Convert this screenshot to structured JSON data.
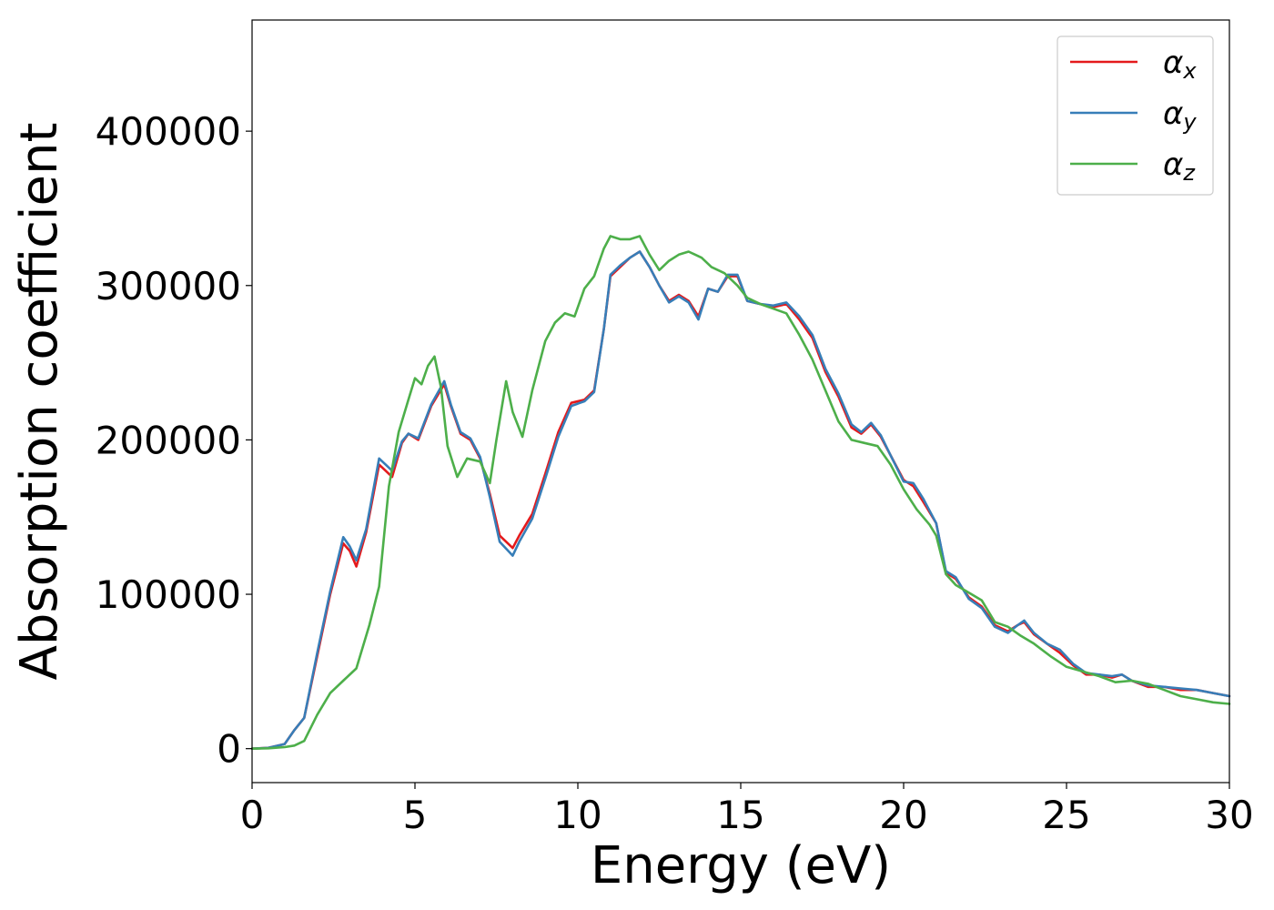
{
  "chart_data": {
    "type": "line",
    "title": "",
    "xlabel": "Energy (eV)",
    "ylabel": "Absorption coefficient",
    "xlim": [
      0,
      30
    ],
    "ylim": [
      -22000,
      472000
    ],
    "xticks": [
      0,
      5,
      10,
      15,
      20,
      25,
      30
    ],
    "yticks": [
      0,
      100000,
      200000,
      300000,
      400000
    ],
    "grid": false,
    "legend_position": "top-right",
    "series": [
      {
        "name": "αx",
        "symbol": "α",
        "subscript": "x",
        "color": "#e41a1c",
        "x": [
          0,
          0.5,
          1.0,
          1.3,
          1.6,
          2.0,
          2.4,
          2.8,
          3.0,
          3.2,
          3.5,
          3.9,
          4.1,
          4.3,
          4.6,
          4.8,
          5.1,
          5.5,
          5.9,
          6.1,
          6.4,
          6.7,
          7.0,
          7.3,
          7.6,
          8.0,
          8.2,
          8.6,
          9.0,
          9.4,
          9.8,
          10.2,
          10.5,
          10.8,
          11.0,
          11.3,
          11.6,
          11.9,
          12.2,
          12.5,
          12.8,
          13.1,
          13.4,
          13.7,
          14.0,
          14.3,
          14.6,
          14.9,
          15.2,
          15.6,
          16.0,
          16.4,
          16.8,
          17.2,
          17.6,
          18.0,
          18.4,
          18.7,
          19.0,
          19.3,
          19.6,
          20.0,
          20.3,
          20.6,
          21.0,
          21.3,
          21.6,
          22.0,
          22.4,
          22.8,
          23.2,
          23.5,
          23.7,
          24.0,
          24.4,
          24.8,
          25.2,
          25.6,
          26.0,
          26.4,
          26.7,
          27.0,
          27.5,
          28.0,
          28.5,
          29.0,
          29.5,
          30.0
        ],
        "y": [
          0,
          500,
          3000,
          12000,
          20000,
          60000,
          100000,
          133000,
          128000,
          118000,
          140000,
          184000,
          180000,
          176000,
          198000,
          204000,
          200000,
          222000,
          236000,
          222000,
          204000,
          200000,
          188000,
          165000,
          138000,
          130000,
          138000,
          152000,
          178000,
          205000,
          224000,
          226000,
          232000,
          272000,
          306000,
          312000,
          318000,
          322000,
          312000,
          300000,
          290000,
          294000,
          290000,
          280000,
          298000,
          296000,
          306000,
          306000,
          290000,
          288000,
          286000,
          288000,
          278000,
          266000,
          244000,
          228000,
          208000,
          204000,
          210000,
          202000,
          190000,
          174000,
          170000,
          160000,
          146000,
          114000,
          110000,
          98000,
          92000,
          80000,
          76000,
          80000,
          82000,
          74000,
          68000,
          62000,
          54000,
          48000,
          48000,
          46000,
          48000,
          44000,
          40000,
          40000,
          38000,
          38000,
          36000,
          34000
        ]
      },
      {
        "name": "αy",
        "symbol": "α",
        "subscript": "y",
        "color": "#377eb8",
        "x": [
          0,
          0.5,
          1.0,
          1.3,
          1.6,
          2.0,
          2.4,
          2.8,
          3.0,
          3.2,
          3.5,
          3.9,
          4.1,
          4.3,
          4.6,
          4.8,
          5.1,
          5.5,
          5.9,
          6.1,
          6.4,
          6.7,
          7.0,
          7.3,
          7.6,
          8.0,
          8.2,
          8.6,
          9.0,
          9.4,
          9.8,
          10.2,
          10.5,
          10.8,
          11.0,
          11.3,
          11.6,
          11.9,
          12.2,
          12.5,
          12.8,
          13.1,
          13.4,
          13.7,
          14.0,
          14.3,
          14.6,
          14.9,
          15.2,
          15.6,
          16.0,
          16.4,
          16.8,
          17.2,
          17.6,
          18.0,
          18.4,
          18.7,
          19.0,
          19.3,
          19.6,
          20.0,
          20.3,
          20.6,
          21.0,
          21.3,
          21.6,
          22.0,
          22.4,
          22.8,
          23.2,
          23.5,
          23.7,
          24.0,
          24.4,
          24.8,
          25.2,
          25.6,
          26.0,
          26.4,
          26.7,
          27.0,
          27.5,
          28.0,
          28.5,
          29.0,
          29.5,
          30.0
        ],
        "y": [
          0,
          500,
          3000,
          12000,
          20000,
          62000,
          102000,
          137000,
          131000,
          122000,
          142000,
          188000,
          184000,
          180000,
          199000,
          204000,
          201000,
          223000,
          238000,
          223000,
          205000,
          201000,
          189000,
          163000,
          134000,
          125000,
          134000,
          149000,
          175000,
          202000,
          222000,
          225000,
          231000,
          272000,
          307000,
          313000,
          318000,
          322000,
          312000,
          300000,
          289000,
          293000,
          289000,
          278000,
          298000,
          296000,
          307000,
          307000,
          290000,
          288000,
          287000,
          289000,
          280000,
          268000,
          246000,
          230000,
          210000,
          205000,
          211000,
          203000,
          190000,
          173000,
          172000,
          162000,
          146000,
          115000,
          111000,
          97000,
          91000,
          79000,
          75000,
          80000,
          83000,
          75000,
          68000,
          64000,
          55000,
          49000,
          48000,
          47000,
          48000,
          44000,
          41000,
          40000,
          39000,
          38000,
          36000,
          34000
        ]
      },
      {
        "name": "αz",
        "symbol": "α",
        "subscript": "z",
        "color": "#4daf4a",
        "x": [
          0,
          0.5,
          1.0,
          1.3,
          1.6,
          2.0,
          2.4,
          2.8,
          3.2,
          3.6,
          3.9,
          4.2,
          4.5,
          4.8,
          5.0,
          5.2,
          5.4,
          5.6,
          5.8,
          6.0,
          6.3,
          6.6,
          7.0,
          7.3,
          7.5,
          7.8,
          8.0,
          8.3,
          8.6,
          9.0,
          9.3,
          9.6,
          9.9,
          10.2,
          10.5,
          10.8,
          11.0,
          11.3,
          11.6,
          11.9,
          12.2,
          12.5,
          12.8,
          13.1,
          13.4,
          13.8,
          14.1,
          14.5,
          14.9,
          15.2,
          15.6,
          16.0,
          16.4,
          16.8,
          17.2,
          17.6,
          18.0,
          18.4,
          18.8,
          19.2,
          19.6,
          20.0,
          20.4,
          20.8,
          21.0,
          21.3,
          21.6,
          22.0,
          22.4,
          22.8,
          23.2,
          23.6,
          24.0,
          24.5,
          25.0,
          25.5,
          26.0,
          26.5,
          27.0,
          27.5,
          28.0,
          28.5,
          29.0,
          29.5,
          30.0
        ],
        "y": [
          0,
          200,
          1000,
          2000,
          5000,
          22000,
          36000,
          44000,
          52000,
          80000,
          105000,
          170000,
          205000,
          226000,
          240000,
          236000,
          248000,
          254000,
          234000,
          196000,
          176000,
          188000,
          186000,
          172000,
          200000,
          238000,
          218000,
          202000,
          232000,
          264000,
          276000,
          282000,
          280000,
          298000,
          306000,
          324000,
          332000,
          330000,
          330000,
          332000,
          320000,
          310000,
          316000,
          320000,
          322000,
          318000,
          312000,
          308000,
          300000,
          292000,
          288000,
          285000,
          282000,
          268000,
          252000,
          232000,
          212000,
          200000,
          198000,
          196000,
          184000,
          168000,
          155000,
          145000,
          138000,
          113000,
          106000,
          101000,
          96000,
          82000,
          79000,
          73000,
          68000,
          60000,
          53000,
          50000,
          47000,
          43000,
          44000,
          42000,
          38000,
          34000,
          32000,
          30000,
          29000
        ]
      }
    ]
  }
}
